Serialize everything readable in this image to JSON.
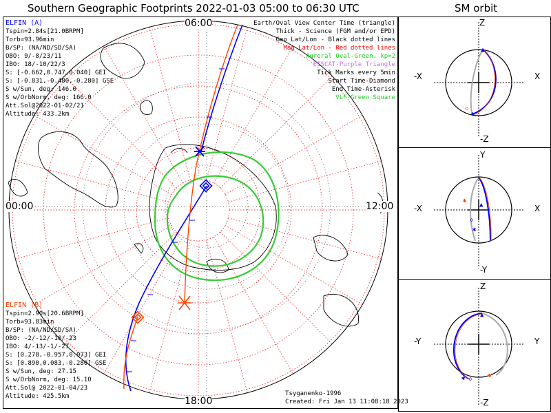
{
  "header": {
    "title": "Southern Geographic Footprints 2022-01-03 05:00 to 06:30 UTC",
    "sm_title": "SM orbit"
  },
  "map": {
    "hour_labels": {
      "top": "06:00",
      "left": "00:00",
      "right": "12:00",
      "bottom": "18:00"
    },
    "legend": [
      {
        "text": "Earth/Oval View Center Time (triangle)",
        "color": "#000000"
      },
      {
        "text": "Thick - Science (FGM and/or EPD)",
        "color": "#000000"
      },
      {
        "text": "Geo Lat/Lon - Black dotted lines",
        "color": "#000000"
      },
      {
        "text": "Mag Lat/Lon - Red dotted lines",
        "color": "#ff0000"
      },
      {
        "text": "Auroral Oval-Green, kp=2",
        "color": "#22cc22"
      },
      {
        "text": "EISCAT-Purple Triangle",
        "color": "#cc66ff"
      },
      {
        "text": "Tick Marks every 5min",
        "color": "#000000"
      },
      {
        "text": "Start Time-Diamond",
        "color": "#000000"
      },
      {
        "text": "End Time-Asterisk",
        "color": "#000000"
      },
      {
        "text": "VLF-Green Square",
        "color": "#22cc22"
      }
    ],
    "credit_model": "Tsyganenko-1996",
    "credit_created": "Created: Fri Jan 13 11:08:18 2023"
  },
  "elfin_a": {
    "name": "ELFIN (A)",
    "color": "#0000ff",
    "lines": [
      "Tspin=2.84s[21.0BRPM]",
      "Torb=93.96min",
      "B/SP: (NA/ND/SD/SA)",
      "OBO: 9/-8/23/11",
      "IBO: 18/-10/22/3",
      "S: [-0.662,0.747,0.040] GEI",
      "S: [-0.831,-0.480,-0.280] GSE",
      "S w/Sun, deg: 146.0",
      "S w/OrbNorm, deg: 166.0",
      "Att.Sol@2022-01-02/21",
      "Altitude: 433.2km"
    ]
  },
  "elfin_b": {
    "name": "ELFIN (B)",
    "color": "#ff4400",
    "lines": [
      "Tspin=2.90s[20.6BRPM]",
      "Torb=93.83min",
      "B/SP: (NA/ND/SD/SA)",
      "OBO: -2/-12/-10/-23",
      "IBO: 4/-13/-1/-27",
      "S: [0.278,-0.957,0.073] GEI",
      "S: [0.890,0.083,-0.280] GSE",
      "S w/Sun, deg: 27.15",
      "S w/OrbNorm, deg: 15.10",
      "Att.Sol@ 2022-01-04/23",
      "Altitude: 425.5km"
    ]
  },
  "sm_panels": [
    {
      "top": "Z",
      "bottom": "-Z",
      "left": "-X",
      "right": "X"
    },
    {
      "top": "Y",
      "bottom": "-Y",
      "left": "-X",
      "right": "X"
    },
    {
      "top": "Z",
      "bottom": "-Z",
      "left": "-Y",
      "right": "Y"
    }
  ],
  "colors": {
    "elfin_a": "#0000ff",
    "elfin_b": "#ff4400",
    "oval": "#33cc33",
    "mag_grid": "#ee3333",
    "grey_orbit": "#aaaaaa"
  }
}
